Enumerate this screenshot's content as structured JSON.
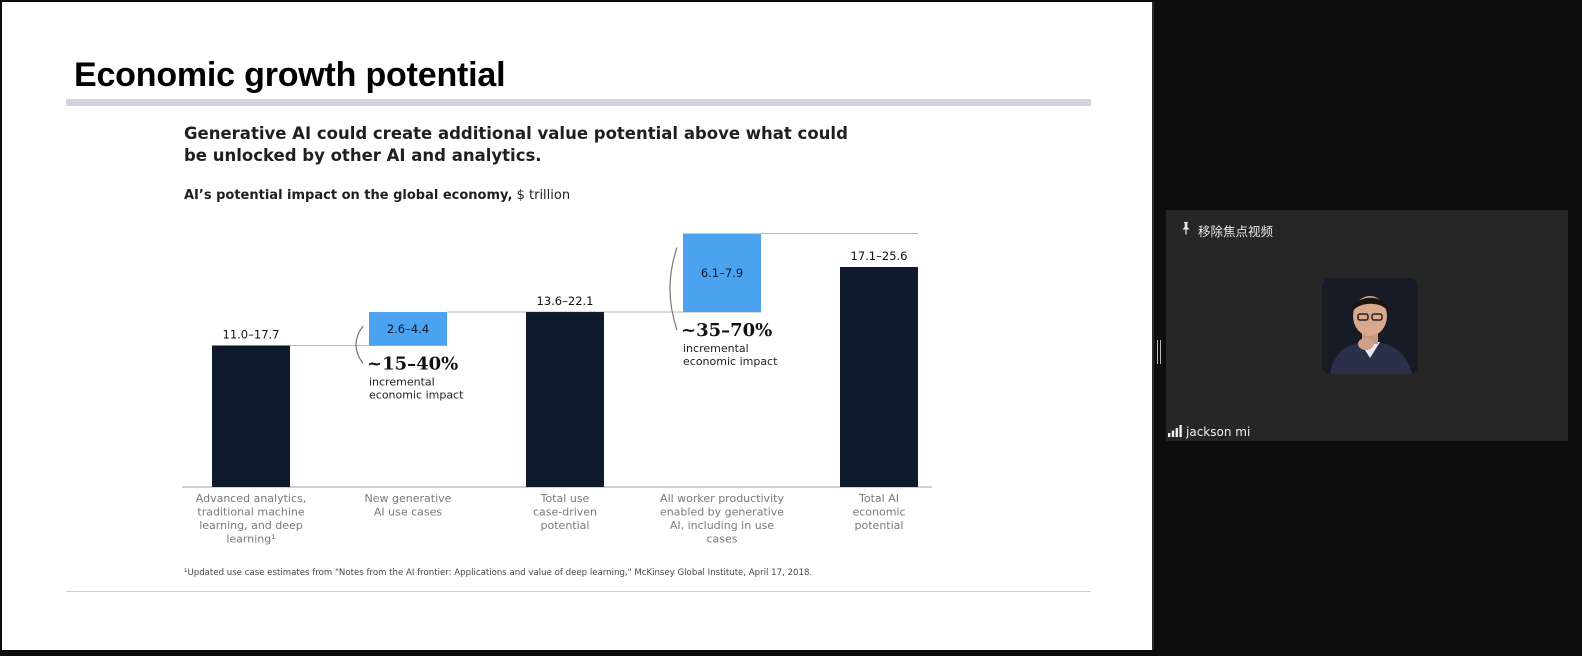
{
  "slide": {
    "title": "Economic growth potential",
    "headline": "Generative AI could create additional value potential above what could be unlocked by other AI and analytics.",
    "subtitle_bold": "AI’s potential impact on the global economy,",
    "subtitle_unit": "$ trillion",
    "footnote": "¹Updated use case estimates from \"Notes from the AI frontier: Applications and value of deep learning,\" McKinsey Global Institute, April 17, 2018."
  },
  "chart_data": {
    "type": "bar",
    "subtype": "waterfall",
    "grid": false,
    "legend": "none",
    "categories": [
      "Advanced analytics, traditional machine learning, and deep learning¹",
      "New generative AI use cases",
      "Total use case-driven potential",
      "All worker productivity enabled by generative AI, including in use cases",
      "Total AI economic potential"
    ],
    "category_lines": [
      [
        "Advanced analytics,",
        "traditional machine",
        "learning, and deep",
        "learning¹"
      ],
      [
        "New generative",
        "AI use cases"
      ],
      [
        "Total use",
        "case-driven",
        "potential"
      ],
      [
        "All worker productivity",
        "enabled by generative",
        "AI, including in use",
        "cases"
      ],
      [
        "Total AI",
        "economic",
        "potential"
      ]
    ],
    "value_labels": [
      "11.0–17.7",
      "2.6–4.4",
      "13.6–22.1",
      "6.1–7.9",
      "17.1–25.6"
    ],
    "ranges": [
      [
        11.0,
        17.7
      ],
      [
        2.6,
        4.4
      ],
      [
        13.6,
        22.1
      ],
      [
        6.1,
        7.9
      ],
      [
        17.1,
        25.6
      ]
    ],
    "bar_kind": [
      "total",
      "increment",
      "total",
      "increment",
      "total"
    ],
    "annotations": [
      {
        "after": 1,
        "pct": "~15–40%",
        "text": [
          "incremental",
          "economic impact"
        ]
      },
      {
        "after": 3,
        "pct": "~35–70%",
        "text": [
          "incremental",
          "economic impact"
        ]
      }
    ],
    "colors": {
      "total": "#0e1a2b",
      "increment": "#4ba3f0",
      "baseline": "#a0a0a0",
      "connector": "#b8b8b8"
    }
  },
  "video_panel": {
    "unpin_label": "移除焦点视频",
    "participant_name": "jackson mi",
    "colors": {
      "panel": "#262626",
      "background": "#0d0d0d"
    }
  }
}
